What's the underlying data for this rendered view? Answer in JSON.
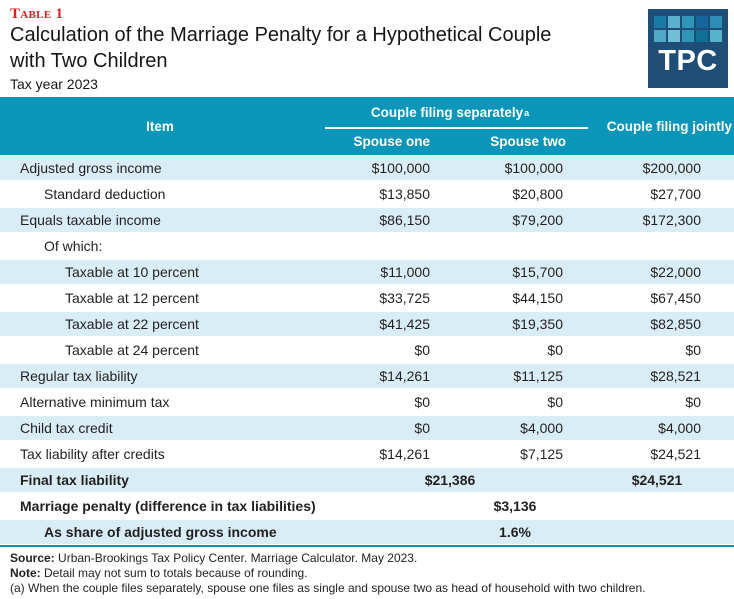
{
  "header": {
    "table_label": "Table 1",
    "title_line1": "Calculation of the Marriage Penalty for a Hypothetical Couple",
    "title_line2": "with Two Children",
    "subtitle": "Tax year 2023",
    "logo_text": "TPC",
    "logo_squares": [
      "#1a7ca4",
      "#5bb1cd",
      "#2f96b8",
      "#15669d",
      "#2d8db4",
      "#4fa9c7",
      "#6fc0d6",
      "#2f96b8",
      "#0f7093",
      "#57b2ce"
    ]
  },
  "colors": {
    "accent_teal": "#0a96b8",
    "row_light_blue": "#d9edf6",
    "table_label_red": "#e41e1e",
    "logo_navy": "#1e4d77",
    "text": "#231f20"
  },
  "table": {
    "item_header": "Item",
    "group_header": "Couple filing separately",
    "group_footnote_marker": "a",
    "col_spouse_one": "Spouse one",
    "col_spouse_two": "Spouse two",
    "col_jointly": "Couple filing jointly",
    "rows": [
      {
        "label": "Adjusted gross income",
        "indent": 0,
        "bold": false,
        "shaded": true,
        "type": "normal",
        "s1": "$100,000",
        "s2": "$100,000",
        "joint": "$200,000"
      },
      {
        "label": "Standard deduction",
        "indent": 1,
        "bold": false,
        "shaded": false,
        "type": "normal",
        "s1": "$13,850",
        "s2": "$20,800",
        "joint": "$27,700"
      },
      {
        "label": "Equals taxable income",
        "indent": 0,
        "bold": false,
        "shaded": true,
        "type": "normal",
        "s1": "$86,150",
        "s2": "$79,200",
        "joint": "$172,300"
      },
      {
        "label": "Of which:",
        "indent": 1,
        "bold": false,
        "shaded": false,
        "type": "normal"
      },
      {
        "label": "Taxable at 10 percent",
        "indent": 2,
        "bold": false,
        "shaded": true,
        "type": "normal",
        "s1": "$11,000",
        "s2": "$15,700",
        "joint": "$22,000"
      },
      {
        "label": "Taxable at 12 percent",
        "indent": 2,
        "bold": false,
        "shaded": false,
        "type": "normal",
        "s1": "$33,725",
        "s2": "$44,150",
        "joint": "$67,450"
      },
      {
        "label": "Taxable at 22 percent",
        "indent": 2,
        "bold": false,
        "shaded": true,
        "type": "normal",
        "s1": "$41,425",
        "s2": "$19,350",
        "joint": "$82,850"
      },
      {
        "label": "Taxable at 24 percent",
        "indent": 2,
        "bold": false,
        "shaded": false,
        "type": "normal",
        "s1": "$0",
        "s2": "$0",
        "joint": "$0"
      },
      {
        "label": "Regular tax liability",
        "indent": 0,
        "bold": false,
        "shaded": true,
        "type": "normal",
        "s1": "$14,261",
        "s2": "$11,125",
        "joint": "$28,521"
      },
      {
        "label": "Alternative minimum tax",
        "indent": 0,
        "bold": false,
        "shaded": false,
        "type": "normal",
        "s1": "$0",
        "s2": "$0",
        "joint": "$0"
      },
      {
        "label": "Child tax credit",
        "indent": 0,
        "bold": false,
        "shaded": true,
        "type": "normal",
        "s1": "$0",
        "s2": "$4,000",
        "joint": "$4,000"
      },
      {
        "label": "Tax liability after credits",
        "indent": 0,
        "bold": false,
        "shaded": false,
        "type": "normal",
        "s1": "$14,261",
        "s2": "$7,125",
        "joint": "$24,521"
      },
      {
        "label": "Final tax liability",
        "indent": 0,
        "bold": true,
        "shaded": true,
        "type": "span2",
        "span_value": "$21,386",
        "joint": "$24,521"
      },
      {
        "label": "Marriage penalty (difference in tax liabilities)",
        "indent": 0,
        "bold": true,
        "shaded": false,
        "type": "center2",
        "s2": "$3,136"
      },
      {
        "label": "As share of adjusted gross income",
        "indent": 1,
        "bold": true,
        "shaded": true,
        "type": "center2",
        "s2": "1.6%"
      }
    ]
  },
  "footer": {
    "source_label": "Source:",
    "source_text": "Urban-Brookings Tax Policy Center. Marriage Calculator. May 2023.",
    "note_label": "Note:",
    "note_text": "Detail may not sum to totals because of rounding.",
    "footnote": "(a) When the couple files separately, spouse one files as single and spouse two as head of household with two children."
  }
}
